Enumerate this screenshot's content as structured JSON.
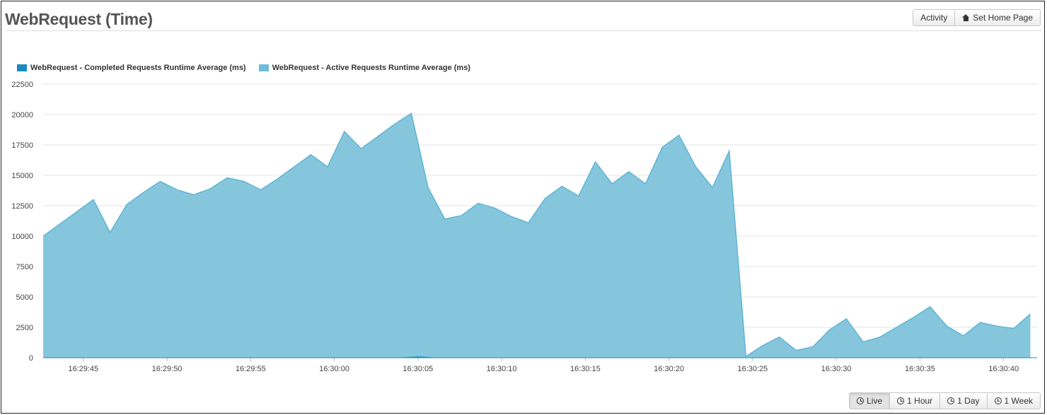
{
  "header": {
    "title": "WebRequest (Time)",
    "activity_label": "Activity",
    "home_label": "Set Home Page"
  },
  "range_buttons": [
    "Live",
    "1 Hour",
    "1 Day",
    "1 Week"
  ],
  "active_range": "Live",
  "colors": {
    "completed": "#1a8bbf",
    "active_fill": "#7fc3da",
    "active_line": "#5db6d6",
    "grid": "#e3e3e3"
  },
  "chart_data": {
    "type": "area",
    "title": "",
    "xlabel": "",
    "ylabel": "",
    "ylim": [
      0,
      22500
    ],
    "yticks": [
      0,
      2500,
      5000,
      7500,
      10000,
      12500,
      15000,
      17500,
      20000,
      22500
    ],
    "xlim": [
      "16:29:42.6",
      "16:30:42.0"
    ],
    "xticks": [
      "16:29:45",
      "16:29:50",
      "16:29:55",
      "16:30:00",
      "16:30:05",
      "16:30:10",
      "16:30:15",
      "16:30:20",
      "16:30:25",
      "16:30:30",
      "16:30:35",
      "16:30:40"
    ],
    "grid": true,
    "legend_position": "top-left",
    "series": [
      {
        "name": "WebRequest - Completed Requests Runtime Average (ms)",
        "color": "#1a8bbf",
        "points": [
          [
            "16:29:42.6",
            0
          ],
          [
            "16:29:50",
            0
          ],
          [
            "16:30:04",
            0
          ],
          [
            "16:30:05",
            80
          ],
          [
            "16:30:06",
            0
          ],
          [
            "16:30:42",
            0
          ]
        ]
      },
      {
        "name": "WebRequest - Active Requests Runtime Average (ms)",
        "color": "#7fc3da",
        "points": [
          [
            "16:29:42.6",
            10000
          ],
          [
            "16:29:43.6",
            11000
          ],
          [
            "16:29:44.6",
            12000
          ],
          [
            "16:29:45.6",
            13000
          ],
          [
            "16:29:46.6",
            10300
          ],
          [
            "16:29:47.6",
            12600
          ],
          [
            "16:29:48.6",
            13600
          ],
          [
            "16:29:49.6",
            14500
          ],
          [
            "16:29:50.6",
            13800
          ],
          [
            "16:29:51.6",
            13400
          ],
          [
            "16:29:52.6",
            13900
          ],
          [
            "16:29:53.6",
            14800
          ],
          [
            "16:29:54.6",
            14500
          ],
          [
            "16:29:55.6",
            13800
          ],
          [
            "16:29:56.6",
            14700
          ],
          [
            "16:29:57.6",
            15700
          ],
          [
            "16:29:58.6",
            16700
          ],
          [
            "16:29:59.6",
            15700
          ],
          [
            "16:30:00.6",
            18600
          ],
          [
            "16:30:01.6",
            17200
          ],
          [
            "16:30:02.6",
            18200
          ],
          [
            "16:30:03.6",
            19200
          ],
          [
            "16:30:04.6",
            20100
          ],
          [
            "16:30:05.6",
            14000
          ],
          [
            "16:30:06.6",
            11400
          ],
          [
            "16:30:07.6",
            11700
          ],
          [
            "16:30:08.6",
            12700
          ],
          [
            "16:30:09.6",
            12300
          ],
          [
            "16:30:10.6",
            11600
          ],
          [
            "16:30:11.6",
            11100
          ],
          [
            "16:30:12.6",
            13100
          ],
          [
            "16:30:13.6",
            14100
          ],
          [
            "16:30:14.6",
            13300
          ],
          [
            "16:30:15.6",
            16100
          ],
          [
            "16:30:16.6",
            14300
          ],
          [
            "16:30:17.6",
            15300
          ],
          [
            "16:30:18.6",
            14300
          ],
          [
            "16:30:19.6",
            17300
          ],
          [
            "16:30:20.6",
            18300
          ],
          [
            "16:30:21.6",
            15700
          ],
          [
            "16:30:22.6",
            14000
          ],
          [
            "16:30:23.6",
            17000
          ],
          [
            "16:30:24.6",
            100
          ],
          [
            "16:30:25.6",
            1000
          ],
          [
            "16:30:26.6",
            1700
          ],
          [
            "16:30:27.6",
            600
          ],
          [
            "16:30:28.6",
            900
          ],
          [
            "16:30:29.6",
            2300
          ],
          [
            "16:30:30.6",
            3200
          ],
          [
            "16:30:31.6",
            1300
          ],
          [
            "16:30:32.6",
            1700
          ],
          [
            "16:30:33.6",
            2500
          ],
          [
            "16:30:34.6",
            3300
          ],
          [
            "16:30:35.6",
            4200
          ],
          [
            "16:30:36.6",
            2600
          ],
          [
            "16:30:37.6",
            1800
          ],
          [
            "16:30:38.6",
            2900
          ],
          [
            "16:30:39.6",
            2600
          ],
          [
            "16:30:40.6",
            2400
          ],
          [
            "16:30:41.6",
            3600
          ]
        ]
      }
    ]
  }
}
